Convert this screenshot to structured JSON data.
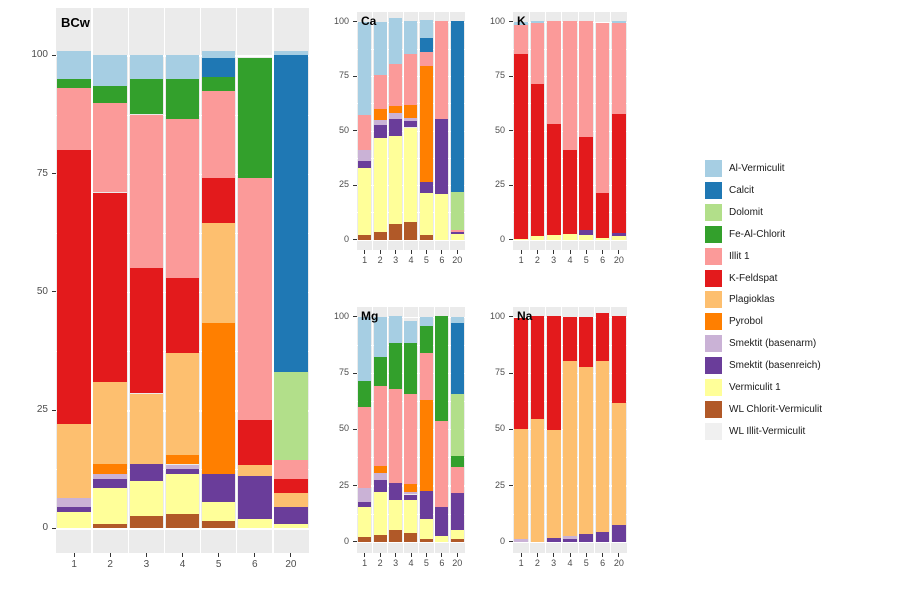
{
  "colors": {
    "Al-Vermiculit": "#A6CEE3",
    "Calcit": "#1F78B4",
    "Dolomit": "#B2DF8A",
    "Fe-Al-Chlorit": "#33A02C",
    "Illit 1": "#FB9A99",
    "K-Feldspat": "#E31A1C",
    "Plagioklas": "#FDBF6F",
    "Pyrobol": "#FF7F00",
    "Smektit (basenarm)": "#CAB2D6",
    "Smektit (basenreich)": "#6A3D9A",
    "Vermiculit 1": "#FFFF99",
    "WL Chlorit-Vermiculit": "#B15928",
    "WL Illit-Vermiculit": "#F0F0F0"
  },
  "legend": {
    "items": [
      "Al-Vermiculit",
      "Calcit",
      "Dolomit",
      "Fe-Al-Chlorit",
      "Illit 1",
      "K-Feldspat",
      "Plagioklas",
      "Pyrobol",
      "Smektit (basenarm)",
      "Smektit (basenreich)",
      "Vermiculit 1",
      "WL Chlorit-Vermiculit",
      "WL Illit-Vermiculit"
    ],
    "panel_background": "#EBEBEB",
    "axis_text_color": "#4d4d4d"
  },
  "chart_data": [
    {
      "type": "bar",
      "stacked": true,
      "title": "BCw",
      "categories": [
        "1",
        "2",
        "3",
        "4",
        "5",
        "6",
        "20"
      ],
      "yticks": [
        0,
        25,
        50,
        75,
        100
      ],
      "ylim": [
        0,
        100
      ],
      "ylabel": "",
      "xlabel": "",
      "grid": true,
      "legend_position": "right",
      "series": [
        {
          "name": "WL Chlorit-Vermiculit",
          "values": [
            0,
            1,
            2.5,
            3,
            1.5,
            0,
            0
          ]
        },
        {
          "name": "Vermiculit 1",
          "values": [
            3.5,
            7.5,
            7.5,
            8.5,
            4,
            2,
            1
          ]
        },
        {
          "name": "Smektit (basenreich)",
          "values": [
            1,
            2,
            3.5,
            1,
            6,
            9,
            3.5
          ]
        },
        {
          "name": "Smektit (basenarm)",
          "values": [
            2,
            1,
            0,
            1,
            0,
            0,
            0
          ]
        },
        {
          "name": "Pyrobol",
          "values": [
            0,
            2,
            0,
            2,
            32,
            0,
            0
          ]
        },
        {
          "name": "Plagioklas",
          "values": [
            15.5,
            17.5,
            15,
            21.5,
            21,
            2.5,
            3
          ]
        },
        {
          "name": "K-Feldspat",
          "values": [
            58,
            40,
            26.5,
            16,
            9.5,
            9.5,
            3
          ]
        },
        {
          "name": "Illit 1",
          "values": [
            13,
            19,
            32.5,
            33.5,
            18.5,
            51,
            4
          ]
        },
        {
          "name": "Fe-Al-Chlorit",
          "values": [
            2,
            3.5,
            7.5,
            8.5,
            3,
            25.5,
            0
          ]
        },
        {
          "name": "Dolomit",
          "values": [
            0,
            0,
            0,
            0,
            0,
            0,
            18.5
          ]
        },
        {
          "name": "Calcit",
          "values": [
            0,
            0,
            0,
            0,
            4,
            0,
            67
          ]
        },
        {
          "name": "Al-Vermiculit",
          "values": [
            6,
            6.5,
            5,
            5,
            1.5,
            0,
            1
          ]
        }
      ]
    },
    {
      "type": "bar",
      "stacked": true,
      "title": "Ca",
      "categories": [
        "1",
        "2",
        "3",
        "4",
        "5",
        "6",
        "20"
      ],
      "yticks": [
        0,
        25,
        50,
        75,
        100
      ],
      "ylim": [
        0,
        100
      ],
      "series": [
        {
          "name": "WL Chlorit-Vermiculit",
          "values": [
            2,
            3.5,
            7,
            8,
            2,
            0,
            0
          ]
        },
        {
          "name": "Vermiculit 1",
          "values": [
            31,
            43,
            40.5,
            43.5,
            19.5,
            21,
            2.5
          ]
        },
        {
          "name": "Smektit (basenreich)",
          "values": [
            3,
            6,
            8,
            3,
            5,
            34.5,
            1
          ]
        },
        {
          "name": "Smektit (basenarm)",
          "values": [
            5,
            2.5,
            2.5,
            1.5,
            0,
            0,
            0
          ]
        },
        {
          "name": "Pyrobol",
          "values": [
            0,
            5,
            3.5,
            6,
            53,
            0,
            0
          ]
        },
        {
          "name": "Illit 1",
          "values": [
            16,
            15.5,
            19,
            23,
            6.5,
            45,
            1
          ]
        },
        {
          "name": "Dolomit",
          "values": [
            0,
            0,
            0,
            0,
            0,
            0,
            17.5
          ]
        },
        {
          "name": "Calcit",
          "values": [
            0,
            0,
            0,
            0,
            6.5,
            0,
            78.5
          ]
        },
        {
          "name": "Al-Vermiculit",
          "values": [
            43,
            24.5,
            21,
            15.5,
            8.5,
            0,
            0
          ]
        }
      ]
    },
    {
      "type": "bar",
      "stacked": true,
      "title": "K",
      "categories": [
        "1",
        "2",
        "3",
        "4",
        "5",
        "6",
        "20"
      ],
      "yticks": [
        0,
        25,
        50,
        75,
        100
      ],
      "ylim": [
        0,
        100
      ],
      "series": [
        {
          "name": "Vermiculit 1",
          "values": [
            0.5,
            1.5,
            2,
            2.5,
            2,
            1,
            1.5
          ]
        },
        {
          "name": "Smektit (basenreich)",
          "values": [
            0,
            0,
            0,
            0,
            2.5,
            0,
            1.5
          ]
        },
        {
          "name": "K-Feldspat",
          "values": [
            84.5,
            70,
            51,
            38.5,
            42.5,
            20.5,
            54.5
          ]
        },
        {
          "name": "Illit 1",
          "values": [
            13.5,
            28,
            47.5,
            59.5,
            53.5,
            78,
            42
          ]
        },
        {
          "name": "Al-Vermiculit",
          "values": [
            1.5,
            1,
            0,
            0,
            0,
            0,
            1
          ]
        }
      ]
    },
    {
      "type": "bar",
      "stacked": true,
      "title": "Mg",
      "categories": [
        "1",
        "2",
        "3",
        "4",
        "5",
        "6",
        "20"
      ],
      "yticks": [
        0,
        25,
        50,
        75,
        100
      ],
      "ylim": [
        0,
        100
      ],
      "series": [
        {
          "name": "WL Chlorit-Vermiculit",
          "values": [
            2,
            3,
            5,
            4,
            1,
            0,
            1
          ]
        },
        {
          "name": "Vermiculit 1",
          "values": [
            13.5,
            19,
            13.5,
            14.5,
            9,
            2.5,
            4
          ]
        },
        {
          "name": "Smektit (basenreich)",
          "values": [
            2,
            5.5,
            7.5,
            2.5,
            12.5,
            13,
            16.5
          ]
        },
        {
          "name": "Smektit (basenarm)",
          "values": [
            6.5,
            3,
            0,
            1,
            0,
            0,
            0
          ]
        },
        {
          "name": "Pyrobol",
          "values": [
            0,
            3,
            0,
            3.5,
            40.5,
            0,
            0
          ]
        },
        {
          "name": "Illit 1",
          "values": [
            36,
            35.5,
            42,
            40,
            21,
            38,
            11.5
          ]
        },
        {
          "name": "Fe-Al-Chlorit",
          "values": [
            11.5,
            13,
            20.5,
            23,
            12,
            47,
            5
          ]
        },
        {
          "name": "Dolomit",
          "values": [
            0,
            0,
            0,
            0,
            0,
            0,
            27.5
          ]
        },
        {
          "name": "Calcit",
          "values": [
            0,
            0,
            0,
            0,
            0,
            0,
            31.5
          ]
        },
        {
          "name": "Al-Vermiculit",
          "values": [
            28.5,
            18,
            12,
            9.5,
            4,
            0,
            3
          ]
        }
      ]
    },
    {
      "type": "bar",
      "stacked": true,
      "title": "Na",
      "categories": [
        "1",
        "2",
        "3",
        "4",
        "5",
        "6",
        "20"
      ],
      "yticks": [
        0,
        25,
        50,
        75,
        100
      ],
      "ylim": [
        0,
        100
      ],
      "series": [
        {
          "name": "Smektit (basenreich)",
          "values": [
            0,
            0,
            1.5,
            1,
            3.5,
            4.5,
            7.5
          ]
        },
        {
          "name": "Smektit (basenarm)",
          "values": [
            1,
            0,
            0,
            1.5,
            0,
            0,
            0
          ]
        },
        {
          "name": "Plagioklas",
          "values": [
            49,
            54.5,
            48,
            78,
            74,
            76,
            54
          ]
        },
        {
          "name": "K-Feldspat",
          "values": [
            49.5,
            46,
            51,
            19.5,
            22.5,
            21,
            39
          ]
        }
      ]
    }
  ]
}
